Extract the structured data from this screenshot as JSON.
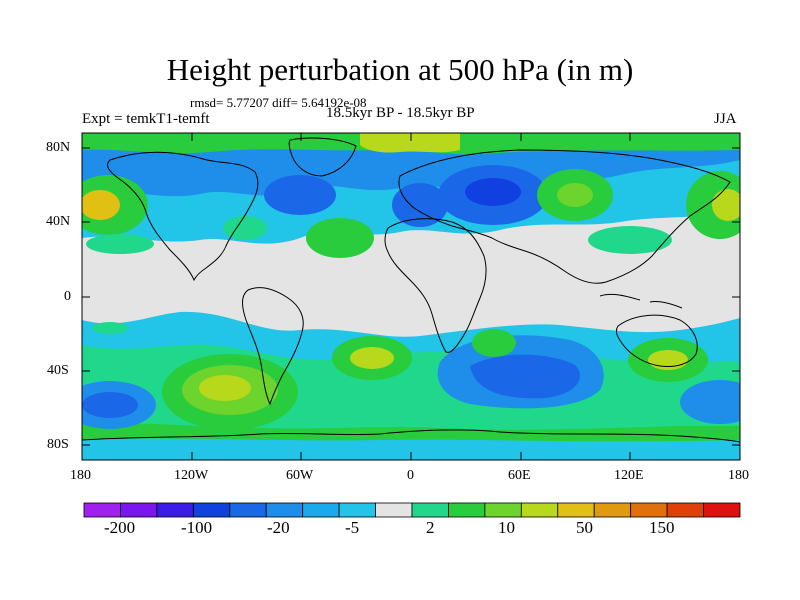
{
  "map": {
    "title": "Height perturbation at 500 hPa (in m)",
    "stats": "rmsd= 5.77207 diff= 5.64192e-08",
    "experiment": "Expt = temkT1-temft",
    "period": "18.5kyr BP - 18.5kyr BP",
    "season": "JJA",
    "projection": "cylindrical equidistant",
    "lat_labels": [
      "80N",
      "40N",
      "0",
      "40S",
      "80S"
    ],
    "lon_labels": [
      "180",
      "120W",
      "60W",
      "0",
      "60E",
      "120E",
      "180"
    ]
  },
  "colorbar": {
    "labels": [
      "-200",
      "-100",
      "-20",
      "-5",
      "2",
      "10",
      "50",
      "150"
    ],
    "colors": [
      "#a020f0",
      "#7a16f0",
      "#3a1ce8",
      "#1040e0",
      "#1a68e8",
      "#1e8eea",
      "#18aaea",
      "#22c4e8",
      "#e4e4e4",
      "#20d88c",
      "#28cc3c",
      "#6cd42c",
      "#b8d81c",
      "#e0c012",
      "#e09a0e",
      "#e0700c",
      "#e04008",
      "#e01010"
    ]
  }
}
